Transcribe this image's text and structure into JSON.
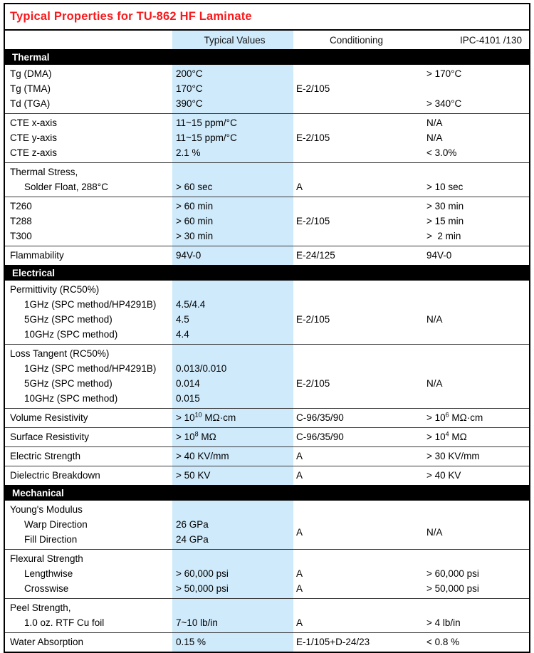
{
  "title": "Typical Properties for TU-862 HF Laminate",
  "colors": {
    "title_red": "#f8191c",
    "section_band_black": "#000000",
    "highlight_blue": "#cfeafb",
    "separator_line": "#3a3a3a"
  },
  "columns": {
    "typical": "Typical Values",
    "conditioning": "Conditioning",
    "ipc": "IPC-4101 /130"
  },
  "sections": [
    {
      "label": "Thermal",
      "groups": [
        {
          "rows": 3,
          "cells": [
            {
              "col": 1,
              "row": 1,
              "text": "Tg (DMA)"
            },
            {
              "col": 1,
              "row": 2,
              "text": "Tg (TMA)"
            },
            {
              "col": 1,
              "row": 3,
              "text": "Td (TGA)"
            },
            {
              "col": 2,
              "row": 1,
              "text": "200°C"
            },
            {
              "col": 2,
              "row": 2,
              "text": "170°C"
            },
            {
              "col": 2,
              "row": 3,
              "text": "390°C"
            },
            {
              "col": 3,
              "row": 1,
              "span": 3,
              "text": "E-2/105"
            },
            {
              "col": 4,
              "row": 1,
              "text": "> 170°C"
            },
            {
              "col": 4,
              "row": 3,
              "text": "> 340°C"
            }
          ]
        },
        {
          "rows": 3,
          "cells": [
            {
              "col": 1,
              "row": 1,
              "text": "CTE x-axis"
            },
            {
              "col": 1,
              "row": 2,
              "text": "CTE y-axis"
            },
            {
              "col": 1,
              "row": 3,
              "text": "CTE z-axis"
            },
            {
              "col": 2,
              "row": 1,
              "text": "11~15 ppm/°C"
            },
            {
              "col": 2,
              "row": 2,
              "text": "11~15 ppm/°C"
            },
            {
              "col": 2,
              "row": 3,
              "text": "2.1 %"
            },
            {
              "col": 3,
              "row": 1,
              "span": 3,
              "text": "E-2/105"
            },
            {
              "col": 4,
              "row": 1,
              "text": "N/A"
            },
            {
              "col": 4,
              "row": 2,
              "text": "N/A"
            },
            {
              "col": 4,
              "row": 3,
              "text": "< 3.0%"
            }
          ]
        },
        {
          "rows": 2,
          "cells": [
            {
              "col": 1,
              "row": 1,
              "text": "Thermal Stress,"
            },
            {
              "col": 1,
              "row": 2,
              "indent": true,
              "text": "Solder Float, 288°C"
            },
            {
              "col": 2,
              "row": 2,
              "text": "> 60 sec"
            },
            {
              "col": 3,
              "row": 2,
              "text": "A"
            },
            {
              "col": 4,
              "row": 2,
              "text": "> 10 sec"
            }
          ]
        },
        {
          "rows": 3,
          "cells": [
            {
              "col": 1,
              "row": 1,
              "text": "T260"
            },
            {
              "col": 1,
              "row": 2,
              "text": "T288"
            },
            {
              "col": 1,
              "row": 3,
              "text": "T300"
            },
            {
              "col": 2,
              "row": 1,
              "text": "> 60 min"
            },
            {
              "col": 2,
              "row": 2,
              "text": "> 60 min"
            },
            {
              "col": 2,
              "row": 3,
              "text": "> 30 min"
            },
            {
              "col": 3,
              "row": 1,
              "span": 3,
              "text": "E-2/105"
            },
            {
              "col": 4,
              "row": 1,
              "text": "> 30 min"
            },
            {
              "col": 4,
              "row": 2,
              "text": "> 15 min"
            },
            {
              "col": 4,
              "row": 3,
              "text": ">  2 min"
            }
          ]
        },
        {
          "rows": 1,
          "cells": [
            {
              "col": 1,
              "row": 1,
              "text": "Flammability"
            },
            {
              "col": 2,
              "row": 1,
              "text": "94V-0"
            },
            {
              "col": 3,
              "row": 1,
              "text": "E-24/125"
            },
            {
              "col": 4,
              "row": 1,
              "text": "94V-0"
            }
          ]
        }
      ]
    },
    {
      "label": "Electrical",
      "groups": [
        {
          "rows": 4,
          "cells": [
            {
              "col": 1,
              "row": 1,
              "text": "Permittivity (RC50%)"
            },
            {
              "col": 1,
              "row": 2,
              "indent": true,
              "text": "1GHz (SPC method/HP4291B)"
            },
            {
              "col": 1,
              "row": 3,
              "indent": true,
              "text": "5GHz (SPC method)"
            },
            {
              "col": 1,
              "row": 4,
              "indent": true,
              "text": "10GHz (SPC method)"
            },
            {
              "col": 2,
              "row": 2,
              "text": "4.5/4.4"
            },
            {
              "col": 2,
              "row": 3,
              "text": "4.5"
            },
            {
              "col": 2,
              "row": 4,
              "text": "4.4"
            },
            {
              "col": 3,
              "row": 3,
              "text": "E-2/105"
            },
            {
              "col": 4,
              "row": 3,
              "text": "N/A"
            }
          ]
        },
        {
          "rows": 4,
          "cells": [
            {
              "col": 1,
              "row": 1,
              "text": "Loss Tangent (RC50%)"
            },
            {
              "col": 1,
              "row": 2,
              "indent": true,
              "text": "1GHz (SPC method/HP4291B)"
            },
            {
              "col": 1,
              "row": 3,
              "indent": true,
              "text": "5GHz (SPC method)"
            },
            {
              "col": 1,
              "row": 4,
              "indent": true,
              "text": "10GHz (SPC method)"
            },
            {
              "col": 2,
              "row": 2,
              "text": "0.013/0.010"
            },
            {
              "col": 2,
              "row": 3,
              "text": "0.014"
            },
            {
              "col": 2,
              "row": 4,
              "text": "0.015"
            },
            {
              "col": 3,
              "row": 3,
              "text": "E-2/105"
            },
            {
              "col": 4,
              "row": 3,
              "text": "N/A"
            }
          ]
        },
        {
          "rows": 1,
          "cells": [
            {
              "col": 1,
              "row": 1,
              "text": "Volume Resistivity"
            },
            {
              "col": 2,
              "row": 1,
              "text": "> 10^{10} MΩ·cm"
            },
            {
              "col": 3,
              "row": 1,
              "text": "C-96/35/90"
            },
            {
              "col": 4,
              "row": 1,
              "text": "> 10^{6} MΩ·cm"
            }
          ]
        },
        {
          "rows": 1,
          "cells": [
            {
              "col": 1,
              "row": 1,
              "text": "Surface Resistivity"
            },
            {
              "col": 2,
              "row": 1,
              "text": "> 10^{8} MΩ"
            },
            {
              "col": 3,
              "row": 1,
              "text": "C-96/35/90"
            },
            {
              "col": 4,
              "row": 1,
              "text": "> 10^{4} MΩ"
            }
          ]
        },
        {
          "rows": 1,
          "cells": [
            {
              "col": 1,
              "row": 1,
              "text": "Electric Strength"
            },
            {
              "col": 2,
              "row": 1,
              "text": "> 40 KV/mm"
            },
            {
              "col": 3,
              "row": 1,
              "text": "A"
            },
            {
              "col": 4,
              "row": 1,
              "text": "> 30 KV/mm"
            }
          ]
        },
        {
          "rows": 1,
          "cells": [
            {
              "col": 1,
              "row": 1,
              "text": "Dielectric Breakdown"
            },
            {
              "col": 2,
              "row": 1,
              "text": "> 50 KV"
            },
            {
              "col": 3,
              "row": 1,
              "text": "A"
            },
            {
              "col": 4,
              "row": 1,
              "text": "> 40 KV"
            }
          ]
        }
      ]
    },
    {
      "label": "Mechanical",
      "groups": [
        {
          "rows": 3,
          "cells": [
            {
              "col": 1,
              "row": 1,
              "text": "Young's Modulus"
            },
            {
              "col": 1,
              "row": 2,
              "indent": true,
              "text": "Warp Direction"
            },
            {
              "col": 1,
              "row": 3,
              "indent": true,
              "text": "Fill Direction"
            },
            {
              "col": 2,
              "row": 2,
              "text": "26 GPa"
            },
            {
              "col": 2,
              "row": 3,
              "text": "24 GPa"
            },
            {
              "col": 3,
              "row": 2,
              "span": 2,
              "text": "A"
            },
            {
              "col": 4,
              "row": 2,
              "span": 2,
              "text": "N/A"
            }
          ]
        },
        {
          "rows": 3,
          "cells": [
            {
              "col": 1,
              "row": 1,
              "text": "Flexural Strength"
            },
            {
              "col": 1,
              "row": 2,
              "indent": true,
              "text": "Lengthwise"
            },
            {
              "col": 1,
              "row": 3,
              "indent": true,
              "text": "Crosswise"
            },
            {
              "col": 2,
              "row": 2,
              "text": "> 60,000 psi"
            },
            {
              "col": 2,
              "row": 3,
              "text": "> 50,000 psi"
            },
            {
              "col": 3,
              "row": 2,
              "text": "A"
            },
            {
              "col": 3,
              "row": 3,
              "text": "A"
            },
            {
              "col": 4,
              "row": 2,
              "text": "> 60,000 psi"
            },
            {
              "col": 4,
              "row": 3,
              "text": "> 50,000 psi"
            }
          ]
        },
        {
          "rows": 2,
          "cells": [
            {
              "col": 1,
              "row": 1,
              "text": "Peel Strength,"
            },
            {
              "col": 1,
              "row": 2,
              "indent": true,
              "text": "1.0 oz. RTF Cu foil"
            },
            {
              "col": 2,
              "row": 2,
              "text": "7~10 lb/in"
            },
            {
              "col": 3,
              "row": 2,
              "text": "A"
            },
            {
              "col": 4,
              "row": 2,
              "text": "> 4 lb/in"
            }
          ]
        },
        {
          "rows": 1,
          "cells": [
            {
              "col": 1,
              "row": 1,
              "text": "Water Absorption"
            },
            {
              "col": 2,
              "row": 1,
              "text": "0.15 %"
            },
            {
              "col": 3,
              "row": 1,
              "text": "E-1/105+D-24/23"
            },
            {
              "col": 4,
              "row": 1,
              "text": "< 0.8 %"
            }
          ]
        }
      ]
    }
  ]
}
